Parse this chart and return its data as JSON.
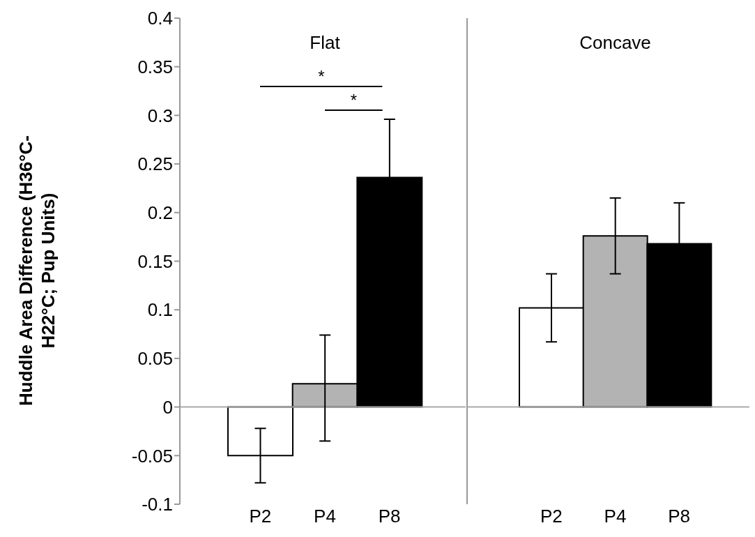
{
  "chart_data": [
    {
      "type": "bar",
      "title": "Flat",
      "ylabel": "Huddle Area Difference (H36°C-H22°C; Pup Units)",
      "categories": [
        "P2",
        "P4",
        "P8"
      ],
      "values": [
        -0.05,
        0.024,
        0.236
      ],
      "colors": [
        "#ffffff",
        "#b3b3b3",
        "#000000"
      ],
      "errors": [
        0.028,
        [
          -0.035,
          0.074
        ],
        0.06
      ],
      "ylim": [
        -0.1,
        0.4
      ],
      "yticks": [
        -0.1,
        -0.05,
        0,
        0.05,
        0.1,
        0.15,
        0.2,
        0.25,
        0.3,
        0.35,
        0.4
      ],
      "ref_lines": [
        {
          "axis": "y",
          "value": 0,
          "color": "#aaaaaa"
        }
      ],
      "annotations": [
        "*",
        "*"
      ]
    },
    {
      "type": "bar",
      "title": "Concave",
      "categories": [
        "P2",
        "P4",
        "P8"
      ],
      "values": [
        0.102,
        0.176,
        0.168
      ],
      "colors": [
        "#ffffff",
        "#b3b3b3",
        "#000000"
      ],
      "errors": [
        0.035,
        0.039,
        0.042
      ],
      "ylim": [
        -0.1,
        0.4
      ],
      "yticks": [
        -0.1,
        -0.05,
        0,
        0.05,
        0.1,
        0.15,
        0.2,
        0.25,
        0.3,
        0.35,
        0.4
      ],
      "ref_lines": [
        {
          "axis": "y",
          "value": 0,
          "color": "#aaaaaa"
        }
      ],
      "tick_labels": "x"
    }
  ]
}
